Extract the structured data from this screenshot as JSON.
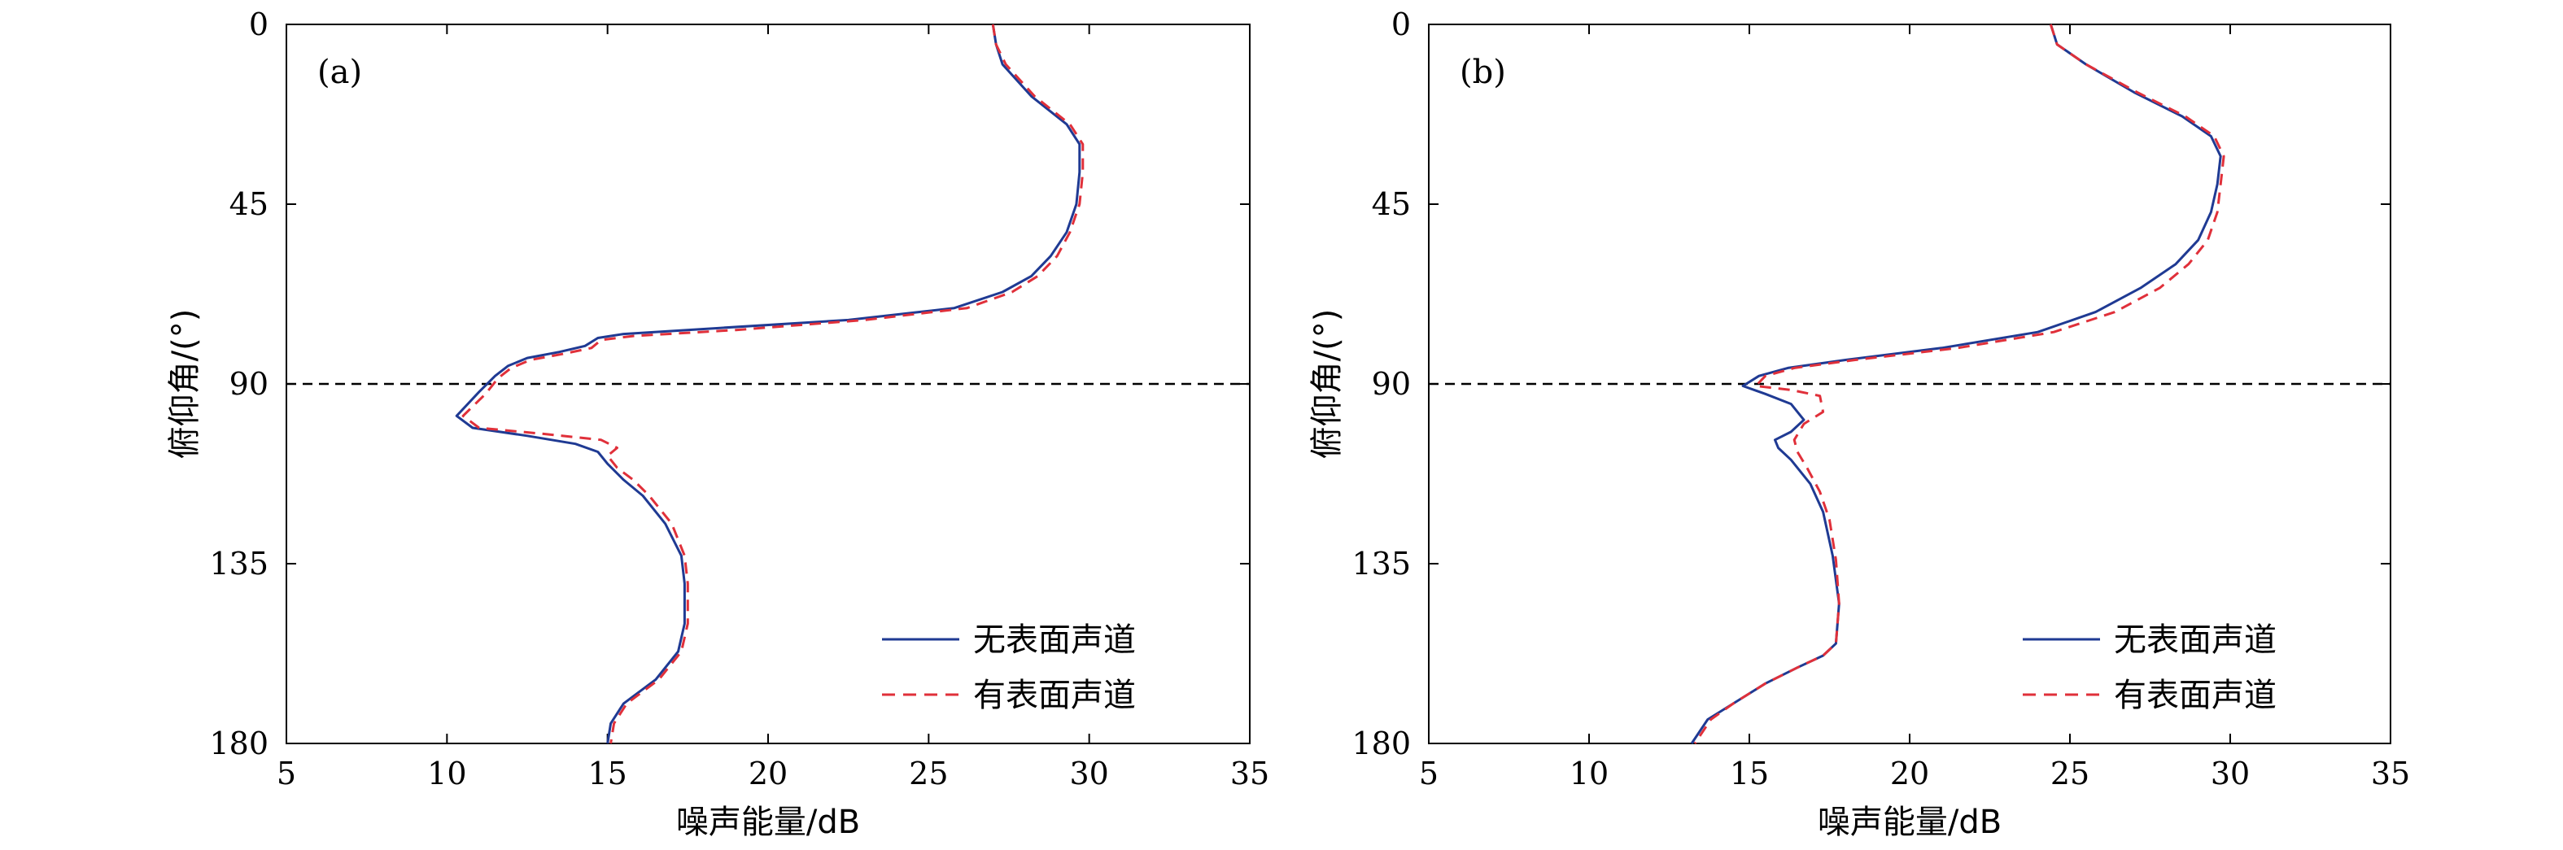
{
  "chart_data": [
    {
      "type": "line",
      "panel_label": "(a)",
      "xlabel": "噪声能量/dB",
      "ylabel": "俯仰角/(°)",
      "xlim": [
        5,
        35
      ],
      "ylim": [
        0,
        180
      ],
      "y_inverted": true,
      "x_ticks": [
        "5",
        "10",
        "15",
        "20",
        "25",
        "30",
        "35"
      ],
      "y_ticks": [
        "0",
        "45",
        "90",
        "135",
        "180"
      ],
      "reference_line": {
        "y": 90,
        "style": "dashed",
        "color": "#000000"
      },
      "legend_position": "bottom-right",
      "series": [
        {
          "name": "无表面声道",
          "color": "#1f3a93",
          "style": "solid",
          "points": [
            [
              27.0,
              0
            ],
            [
              27.1,
              5
            ],
            [
              27.3,
              10
            ],
            [
              28.2,
              18
            ],
            [
              29.3,
              25
            ],
            [
              29.7,
              30
            ],
            [
              29.7,
              37
            ],
            [
              29.6,
              45
            ],
            [
              29.3,
              52
            ],
            [
              28.8,
              58
            ],
            [
              28.2,
              63
            ],
            [
              27.3,
              67
            ],
            [
              25.8,
              71
            ],
            [
              22.5,
              74
            ],
            [
              18.5,
              76
            ],
            [
              15.5,
              77.5
            ],
            [
              14.7,
              78.5
            ],
            [
              14.3,
              80.5
            ],
            [
              13.5,
              82
            ],
            [
              12.5,
              83.5
            ],
            [
              11.9,
              85.5
            ],
            [
              11.5,
              88
            ],
            [
              11.0,
              92
            ],
            [
              10.3,
              98
            ],
            [
              10.8,
              101
            ],
            [
              12.5,
              103
            ],
            [
              14.0,
              105
            ],
            [
              14.7,
              107
            ],
            [
              15.0,
              110
            ],
            [
              15.5,
              114
            ],
            [
              16.1,
              118
            ],
            [
              16.8,
              125
            ],
            [
              17.3,
              133
            ],
            [
              17.4,
              140
            ],
            [
              17.4,
              150
            ],
            [
              17.2,
              157
            ],
            [
              16.5,
              164
            ],
            [
              15.5,
              170
            ],
            [
              15.1,
              175
            ],
            [
              15.0,
              180
            ]
          ]
        },
        {
          "name": "有表面声道",
          "color": "#e0303a",
          "style": "dashed",
          "points": [
            [
              27.0,
              0
            ],
            [
              27.1,
              5
            ],
            [
              27.4,
              10
            ],
            [
              28.3,
              18
            ],
            [
              29.4,
              25
            ],
            [
              29.8,
              30
            ],
            [
              29.8,
              37
            ],
            [
              29.7,
              45
            ],
            [
              29.4,
              52
            ],
            [
              29.0,
              58
            ],
            [
              28.4,
              63
            ],
            [
              27.6,
              67
            ],
            [
              26.2,
              71
            ],
            [
              23.0,
              74
            ],
            [
              19.0,
              76.5
            ],
            [
              15.8,
              78
            ],
            [
              14.8,
              79
            ],
            [
              14.5,
              81
            ],
            [
              13.6,
              82.5
            ],
            [
              12.6,
              84
            ],
            [
              12.0,
              86
            ],
            [
              11.6,
              88.5
            ],
            [
              11.2,
              92.5
            ],
            [
              10.5,
              98
            ],
            [
              11.0,
              101
            ],
            [
              13.0,
              102.5
            ],
            [
              14.8,
              104
            ],
            [
              15.3,
              106
            ],
            [
              15.0,
              108
            ],
            [
              15.3,
              111
            ],
            [
              15.8,
              114
            ],
            [
              16.3,
              118
            ],
            [
              17.0,
              125
            ],
            [
              17.4,
              133
            ],
            [
              17.5,
              140
            ],
            [
              17.5,
              150
            ],
            [
              17.3,
              157
            ],
            [
              16.6,
              164
            ],
            [
              15.6,
              170
            ],
            [
              15.2,
              175
            ],
            [
              15.1,
              180
            ]
          ]
        }
      ]
    },
    {
      "type": "line",
      "panel_label": "(b)",
      "xlabel": "噪声能量/dB",
      "ylabel": "俯仰角/(°)",
      "xlim": [
        5,
        35
      ],
      "ylim": [
        0,
        180
      ],
      "y_inverted": true,
      "x_ticks": [
        "5",
        "10",
        "15",
        "20",
        "25",
        "30",
        "35"
      ],
      "y_ticks": [
        "0",
        "45",
        "90",
        "135",
        "180"
      ],
      "reference_line": {
        "y": 90,
        "style": "dashed",
        "color": "#000000"
      },
      "legend_position": "bottom-right",
      "series": [
        {
          "name": "无表面声道",
          "color": "#1f3a93",
          "style": "solid",
          "points": [
            [
              24.4,
              0
            ],
            [
              24.6,
              5
            ],
            [
              25.5,
              10
            ],
            [
              27.0,
              17
            ],
            [
              28.5,
              23
            ],
            [
              29.4,
              28
            ],
            [
              29.7,
              33
            ],
            [
              29.6,
              40
            ],
            [
              29.4,
              47
            ],
            [
              29.0,
              54
            ],
            [
              28.3,
              60
            ],
            [
              27.2,
              66
            ],
            [
              25.8,
              72
            ],
            [
              24.0,
              77
            ],
            [
              21.0,
              81
            ],
            [
              18.0,
              84
            ],
            [
              16.2,
              86
            ],
            [
              15.3,
              88
            ],
            [
              14.8,
              90.5
            ],
            [
              15.5,
              92.5
            ],
            [
              16.3,
              95
            ],
            [
              16.7,
              99
            ],
            [
              16.3,
              102
            ],
            [
              15.8,
              104
            ],
            [
              15.9,
              106
            ],
            [
              16.3,
              109
            ],
            [
              16.9,
              115
            ],
            [
              17.3,
              122
            ],
            [
              17.6,
              133
            ],
            [
              17.8,
              145
            ],
            [
              17.7,
              155
            ],
            [
              17.3,
              158
            ],
            [
              16.5,
              161
            ],
            [
              15.5,
              165
            ],
            [
              14.5,
              170
            ],
            [
              13.7,
              174
            ],
            [
              13.2,
              180
            ]
          ]
        },
        {
          "name": "有表面声道",
          "color": "#e0303a",
          "style": "dashed",
          "points": [
            [
              24.4,
              0
            ],
            [
              24.6,
              5
            ],
            [
              25.5,
              10
            ],
            [
              27.1,
              17
            ],
            [
              28.6,
              23
            ],
            [
              29.5,
              28
            ],
            [
              29.8,
              33
            ],
            [
              29.7,
              40
            ],
            [
              29.6,
              47
            ],
            [
              29.3,
              54
            ],
            [
              28.7,
              60
            ],
            [
              27.8,
              66
            ],
            [
              26.4,
              72
            ],
            [
              24.5,
              77
            ],
            [
              21.5,
              81
            ],
            [
              18.3,
              84
            ],
            [
              16.4,
              86
            ],
            [
              15.5,
              88
            ],
            [
              15.2,
              90.5
            ],
            [
              16.3,
              91.5
            ],
            [
              17.2,
              93
            ],
            [
              17.3,
              97
            ],
            [
              16.7,
              100
            ],
            [
              16.4,
              104
            ],
            [
              16.5,
              107
            ],
            [
              16.8,
              111
            ],
            [
              17.2,
              117
            ],
            [
              17.5,
              124
            ],
            [
              17.7,
              134
            ],
            [
              17.8,
              145
            ],
            [
              17.7,
              155
            ],
            [
              17.3,
              158
            ],
            [
              16.5,
              161
            ],
            [
              15.5,
              165
            ],
            [
              14.5,
              170
            ],
            [
              13.8,
              174
            ],
            [
              13.3,
              180
            ]
          ]
        }
      ]
    }
  ]
}
